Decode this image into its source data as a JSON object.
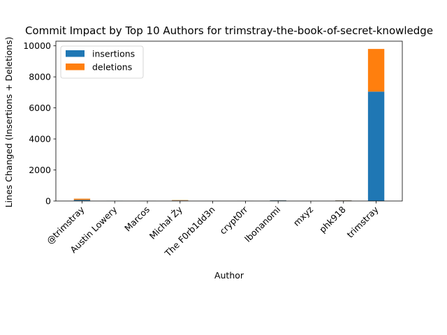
{
  "chart_data": {
    "type": "bar",
    "stacked": true,
    "title": "Commit Impact by Top 10 Authors for trimstray-the-book-of-secret-knowledge",
    "xlabel": "Author",
    "ylabel": "Lines Changed (Insertions + Deletions)",
    "ylim": [
      0,
      10300
    ],
    "yticks": [
      0,
      2000,
      4000,
      6000,
      8000,
      10000
    ],
    "categories": [
      "@trimstray",
      "Austin Lowery",
      "Marcos",
      "Michał Ży",
      "The F0rb1dd3n",
      "crypt0rr",
      "lbonanomi",
      "mxyz",
      "phk918",
      "trimstray"
    ],
    "series": [
      {
        "name": "insertions",
        "color": "#1f77b4",
        "values": [
          70,
          5,
          3,
          35,
          2,
          4,
          40,
          2,
          35,
          7050
        ]
      },
      {
        "name": "deletions",
        "color": "#ff7f0e",
        "values": [
          80,
          2,
          2,
          25,
          1,
          2,
          10,
          1,
          10,
          2750
        ]
      }
    ],
    "legend_position": "upper-left",
    "grid": false
  }
}
